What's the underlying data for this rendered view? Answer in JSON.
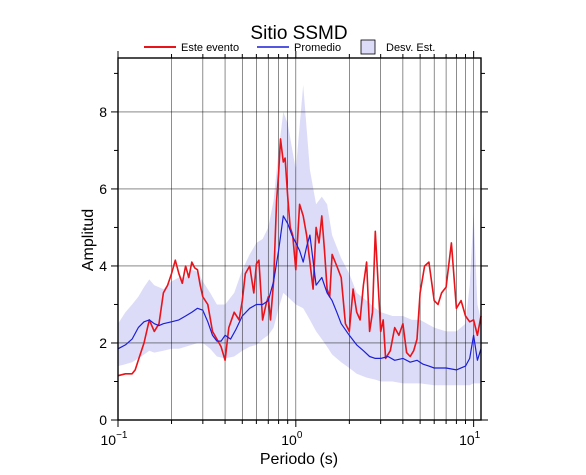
{
  "chart_data": {
    "type": "line",
    "title": "Sitio SSMD",
    "xlabel": "Periodo (s)",
    "ylabel": "Amplitud",
    "x_scale": "log",
    "xlim": [
      0.1,
      11
    ],
    "ylim": [
      0,
      9.4
    ],
    "x_ticks": [
      {
        "value": 0.1,
        "base": "10",
        "exp": "−1"
      },
      {
        "value": 1,
        "base": "10",
        "exp": "0"
      },
      {
        "value": 10,
        "base": "10",
        "exp": "1"
      }
    ],
    "y_ticks": [
      0,
      2,
      4,
      6,
      8
    ],
    "y_ticks_text": [
      "0",
      "2",
      "4",
      "6",
      "8"
    ],
    "grid": true,
    "legend_position": "top",
    "legend": {
      "event": "Este evento",
      "mean": "Promedio",
      "std": "Desv. Est."
    },
    "colors": {
      "event": "#e8141b",
      "mean": "#1b1fd6",
      "band": "#dcdcf8",
      "band_stroke": "#d0d0f0"
    },
    "series": [
      {
        "name": "Este evento",
        "x": [
          0.1,
          0.11,
          0.12,
          0.125,
          0.13,
          0.14,
          0.15,
          0.16,
          0.17,
          0.18,
          0.19,
          0.2,
          0.21,
          0.22,
          0.23,
          0.24,
          0.25,
          0.26,
          0.27,
          0.28,
          0.29,
          0.3,
          0.32,
          0.34,
          0.36,
          0.38,
          0.4,
          0.42,
          0.45,
          0.48,
          0.5,
          0.52,
          0.55,
          0.58,
          0.6,
          0.62,
          0.65,
          0.68,
          0.7,
          0.72,
          0.75,
          0.78,
          0.8,
          0.82,
          0.85,
          0.87,
          0.9,
          0.93,
          0.96,
          1.0,
          1.05,
          1.1,
          1.15,
          1.2,
          1.25,
          1.3,
          1.35,
          1.4,
          1.45,
          1.5,
          1.55,
          1.6,
          1.7,
          1.8,
          1.9,
          2.0,
          2.1,
          2.2,
          2.3,
          2.4,
          2.5,
          2.6,
          2.7,
          2.8,
          2.9,
          3.0,
          3.1,
          3.2,
          3.4,
          3.6,
          3.8,
          4.0,
          4.2,
          4.4,
          4.6,
          4.8,
          5.0,
          5.3,
          5.6,
          6.0,
          6.3,
          6.6,
          7.0,
          7.5,
          8.0,
          8.5,
          9.0,
          9.5,
          10.0,
          10.5,
          11.0
        ],
        "values": [
          1.15,
          1.2,
          1.2,
          1.3,
          1.55,
          2.0,
          2.6,
          2.3,
          2.5,
          3.3,
          3.5,
          3.8,
          4.15,
          3.8,
          3.55,
          4.0,
          3.7,
          4.1,
          3.95,
          3.9,
          3.5,
          3.2,
          3.0,
          2.3,
          2.1,
          1.9,
          1.55,
          2.4,
          2.8,
          2.6,
          3.1,
          3.8,
          4.0,
          3.3,
          4.05,
          4.15,
          2.6,
          3.0,
          3.2,
          2.6,
          3.6,
          5.7,
          6.4,
          7.3,
          6.7,
          6.8,
          5.8,
          5.0,
          4.8,
          3.9,
          5.6,
          5.3,
          4.8,
          4.1,
          3.4,
          5.0,
          4.6,
          5.3,
          4.4,
          3.4,
          3.2,
          4.3,
          4.0,
          3.7,
          2.5,
          2.3,
          3.4,
          2.8,
          2.6,
          3.5,
          4.1,
          2.3,
          2.8,
          4.9,
          3.6,
          2.3,
          2.6,
          1.6,
          1.8,
          2.4,
          2.2,
          2.5,
          1.75,
          1.65,
          1.8,
          2.1,
          3.3,
          4.0,
          4.1,
          3.1,
          3.0,
          3.3,
          3.45,
          4.6,
          2.9,
          3.1,
          2.7,
          2.55,
          2.6,
          2.2,
          2.7
        ]
      },
      {
        "name": "Promedio",
        "x": [
          0.1,
          0.11,
          0.12,
          0.13,
          0.14,
          0.15,
          0.16,
          0.17,
          0.18,
          0.2,
          0.22,
          0.24,
          0.26,
          0.28,
          0.3,
          0.32,
          0.34,
          0.36,
          0.38,
          0.4,
          0.43,
          0.46,
          0.5,
          0.55,
          0.6,
          0.65,
          0.7,
          0.75,
          0.8,
          0.85,
          0.9,
          0.95,
          1.0,
          1.05,
          1.1,
          1.15,
          1.2,
          1.3,
          1.4,
          1.5,
          1.6,
          1.7,
          1.8,
          2.0,
          2.2,
          2.4,
          2.6,
          2.8,
          3.0,
          3.3,
          3.6,
          4.0,
          4.4,
          4.8,
          5.2,
          5.6,
          6.0,
          7.0,
          8.0,
          9.0,
          9.5,
          10.0,
          10.5,
          11.0
        ],
        "values": [
          1.85,
          1.95,
          2.1,
          2.4,
          2.55,
          2.6,
          2.5,
          2.45,
          2.5,
          2.55,
          2.6,
          2.7,
          2.8,
          2.9,
          2.85,
          2.55,
          2.2,
          2.05,
          2.05,
          2.2,
          2.1,
          2.35,
          2.7,
          2.9,
          3.0,
          3.0,
          3.1,
          3.6,
          4.4,
          5.3,
          5.1,
          4.8,
          4.6,
          4.4,
          4.1,
          4.5,
          4.8,
          3.5,
          3.7,
          3.3,
          3.1,
          2.8,
          2.5,
          2.2,
          1.95,
          1.8,
          1.65,
          1.6,
          1.6,
          1.65,
          1.55,
          1.6,
          1.5,
          1.55,
          1.45,
          1.4,
          1.35,
          1.35,
          1.3,
          1.4,
          1.6,
          2.2,
          1.55,
          1.85
        ]
      }
    ],
    "band": {
      "name": "Desv. Est.",
      "x": [
        0.1,
        0.11,
        0.12,
        0.13,
        0.14,
        0.15,
        0.16,
        0.18,
        0.2,
        0.22,
        0.24,
        0.26,
        0.28,
        0.3,
        0.33,
        0.36,
        0.4,
        0.45,
        0.5,
        0.55,
        0.6,
        0.65,
        0.7,
        0.75,
        0.8,
        0.85,
        0.9,
        1.0,
        1.1,
        1.2,
        1.3,
        1.4,
        1.5,
        1.6,
        1.8,
        2.0,
        2.2,
        2.5,
        2.8,
        3.0,
        3.5,
        4.0,
        4.5,
        5.0,
        6.0,
        7.0,
        8.0,
        9.0,
        9.5,
        10.0,
        10.5,
        11.0
      ],
      "upper": [
        2.5,
        2.8,
        3.0,
        3.2,
        3.45,
        3.65,
        3.5,
        3.4,
        3.6,
        3.7,
        3.7,
        3.9,
        3.85,
        3.6,
        3.3,
        3.0,
        3.0,
        3.3,
        3.9,
        4.3,
        4.6,
        4.7,
        5.0,
        5.7,
        7.0,
        8.0,
        7.7,
        6.5,
        8.7,
        6.5,
        5.6,
        5.8,
        5.6,
        4.8,
        4.2,
        3.8,
        3.3,
        3.1,
        2.9,
        2.8,
        2.7,
        2.7,
        2.6,
        2.6,
        2.4,
        2.3,
        2.3,
        2.5,
        3.5,
        5.4,
        3.0,
        2.6
      ],
      "lower": [
        1.4,
        1.45,
        1.5,
        1.6,
        1.7,
        1.8,
        1.75,
        1.8,
        1.85,
        1.85,
        1.9,
        1.95,
        2.0,
        2.0,
        1.85,
        1.65,
        1.6,
        1.65,
        1.8,
        1.9,
        1.95,
        2.1,
        2.2,
        2.4,
        2.9,
        3.3,
        3.2,
        3.0,
        2.9,
        2.6,
        2.3,
        2.1,
        1.9,
        1.7,
        1.5,
        1.35,
        1.2,
        1.1,
        1.05,
        1.0,
        1.0,
        0.95,
        0.95,
        0.95,
        0.9,
        0.9,
        0.9,
        0.9,
        0.9,
        0.95,
        0.95,
        0.95
      ]
    }
  }
}
